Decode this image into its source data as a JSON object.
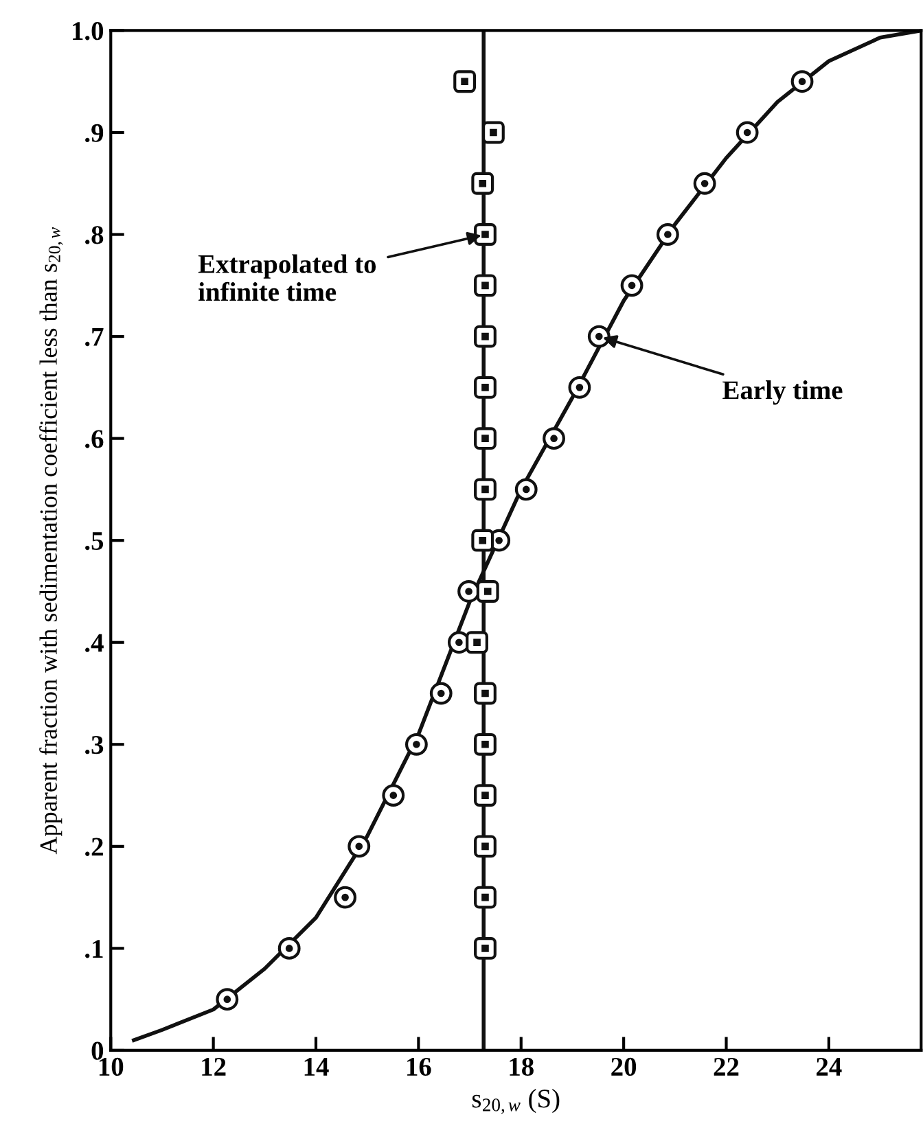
{
  "chart_data": {
    "type": "scatter",
    "xlabel": "s$_{20,w}$ (S)",
    "ylabel": "Apparent fraction with sedimentation coefficient less than s$_{20,w}$",
    "xlim": [
      10,
      25.8
    ],
    "ylim": [
      0,
      1.0
    ],
    "xticks": [
      10,
      12,
      14,
      16,
      18,
      20,
      22,
      24
    ],
    "yticks": [
      0,
      {
        "value": 0.1,
        "label": ".1"
      },
      {
        "value": 0.2,
        "label": ".2"
      },
      {
        "value": 0.3,
        "label": ".3"
      },
      {
        "value": 0.4,
        "label": ".4"
      },
      {
        "value": 0.5,
        "label": ".5"
      },
      {
        "value": 0.6,
        "label": ".6"
      },
      {
        "value": 0.7,
        "label": ".7"
      },
      {
        "value": 0.8,
        "label": ".8"
      },
      {
        "value": 0.9,
        "label": ".9"
      },
      {
        "value": 1.0,
        "label": "1.0"
      }
    ],
    "grid": false,
    "legend": false,
    "series": [
      {
        "type": "line",
        "color": "#111111",
        "marker": "none",
        "line_style": "solid",
        "x": [
          10.45,
          11,
          12,
          13,
          14,
          15,
          16,
          17,
          18,
          19,
          20,
          21,
          22,
          23,
          24,
          25,
          25.8
        ],
        "values": [
          0.01,
          0.02,
          0.04,
          0.08,
          0.13,
          0.21,
          0.31,
          0.44,
          0.55,
          0.64,
          0.735,
          0.81,
          0.875,
          0.93,
          0.97,
          0.993,
          1.0
        ]
      },
      {
        "type": "line",
        "color": "#111111",
        "marker": "none",
        "line_style": "solid",
        "x": [
          17.27,
          17.27
        ],
        "values": [
          0,
          1.0
        ]
      },
      {
        "color": "#111111",
        "marker": "circle",
        "x": [
          12.27,
          13.48,
          14.57,
          14.84,
          15.51,
          15.96,
          16.44,
          16.79,
          16.98,
          17.57,
          18.1,
          18.64,
          19.14,
          19.52,
          20.16,
          20.86,
          21.58,
          22.41,
          23.48
        ],
        "values": [
          0.05,
          0.1,
          0.15,
          0.2,
          0.25,
          0.3,
          0.35,
          0.4,
          0.45,
          0.5,
          0.55,
          0.6,
          0.65,
          0.7,
          0.75,
          0.8,
          0.85,
          0.9,
          0.95
        ]
      },
      {
        "color": "#111111",
        "marker": "square",
        "x": [
          17.3,
          17.3,
          17.3,
          17.3,
          17.3,
          17.3,
          17.14,
          17.35,
          17.25,
          17.3,
          17.3,
          17.3,
          17.3,
          17.3,
          17.3,
          17.25,
          17.46,
          16.9
        ],
        "values": [
          0.1,
          0.15,
          0.2,
          0.25,
          0.3,
          0.35,
          0.4,
          0.45,
          0.5,
          0.55,
          0.6,
          0.65,
          0.7,
          0.75,
          0.8,
          0.85,
          0.9,
          0.95
        ]
      }
    ],
    "annotations": [
      {
        "text": "Extrapolated to\ninfinite time",
        "x": 17.3,
        "y": 0.8
      },
      {
        "text": "Early time",
        "x": 19.52,
        "y": 0.7
      }
    ]
  }
}
